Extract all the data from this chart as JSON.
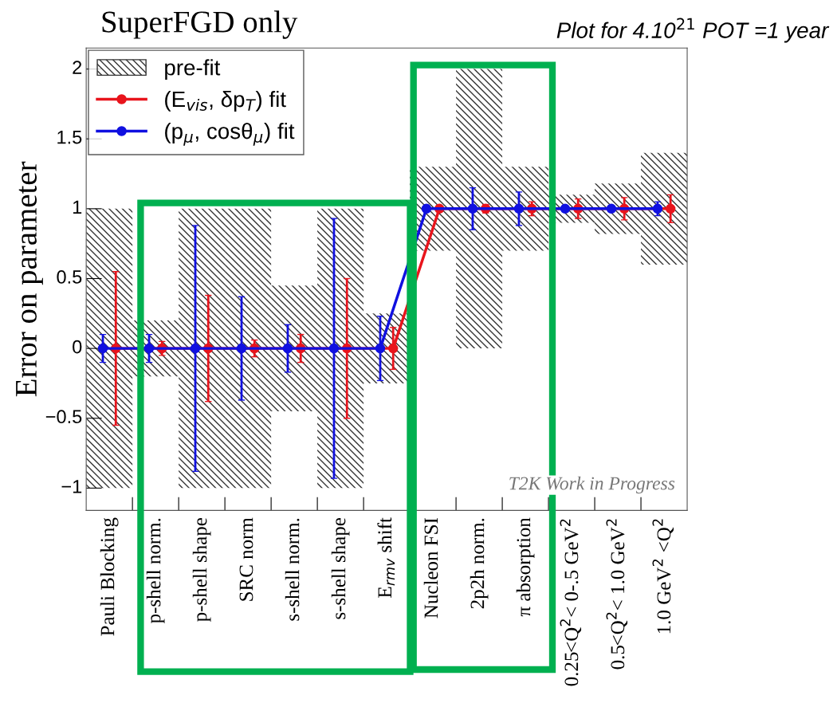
{
  "chart_data": {
    "type": "line",
    "title": "SuperFGD only",
    "ylabel": "Error on parameter",
    "categories": [
      "Pauli Blocking",
      "p-shell norm.",
      "p-shell shape",
      "SRC norm",
      "s-shell norm.",
      "s-shell shape",
      "E$_{rmv}$ shift",
      "Nucleon FSI",
      "2p2h norm.",
      "π absorption",
      "0.25<Q$^{2}$< 0-.5 GeV$^{2}$",
      "0.5<Q$^{2}$< 1.0 GeV$^{2}$",
      "1.0 GeV$^{2}$ <Q$^{2}$"
    ],
    "series": [
      {
        "name": "pre-fit",
        "type": "bar",
        "color": "#333333",
        "base": [
          -1,
          -0.2,
          -1,
          -1,
          -0.45,
          -1,
          -0.25,
          0.7,
          0,
          0.7,
          0.9,
          0.82,
          0.6
        ],
        "values": [
          2,
          0.4,
          2,
          2,
          0.9,
          2,
          0.5,
          0.6,
          2,
          0.6,
          0.2,
          0.36,
          0.8
        ]
      },
      {
        "name": "(E$_{vis}$, δp$_{T}$) fit",
        "color": "#e8141c",
        "values": [
          0,
          0,
          0,
          0,
          0,
          0,
          0,
          1,
          1,
          1,
          1,
          1,
          1
        ],
        "errors": [
          0.55,
          0.05,
          0.38,
          0.06,
          0.1,
          0.5,
          0.15,
          null,
          0.03,
          0.05,
          0.07,
          0.08,
          0.1
        ]
      },
      {
        "name": "(p$_{μ}$, cosθ$_{μ}$) fit",
        "color": "#1010e0",
        "values": [
          0,
          0,
          0,
          0,
          0,
          0,
          0,
          1,
          1,
          1,
          1,
          1,
          1
        ],
        "errors": [
          0.1,
          0.1,
          0.88,
          0.37,
          0.17,
          0.93,
          0.23,
          null,
          0.15,
          0.12,
          null,
          null,
          0.05
        ]
      }
    ],
    "ylim": [
      -1.16,
      2.15
    ],
    "yticks": [
      {
        "value": -1,
        "label": "−1"
      },
      {
        "value": -0.5,
        "label": "−0.5"
      },
      0,
      0.5,
      1,
      1.5,
      2
    ],
    "annotations": [
      "Plot for 4.10$^{21}$ POT =1 year",
      "T2K Work in Progress"
    ],
    "legend": "top left",
    "marker": "circle",
    "line_style": "solid",
    "grid": false
  }
}
